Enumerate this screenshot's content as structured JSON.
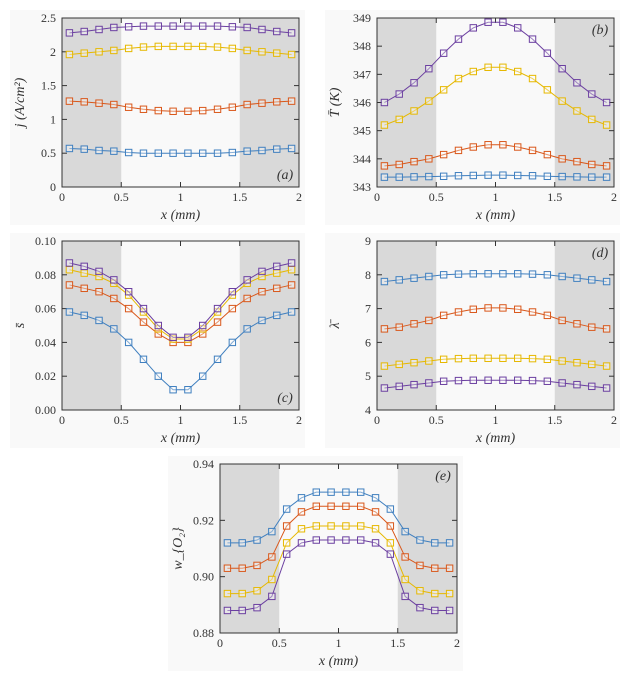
{
  "global": {
    "marker_size": 3.2,
    "shade_left": [
      0,
      0.5
    ],
    "shade_right": [
      1.5,
      2.0
    ],
    "x": [
      0.0625,
      0.1875,
      0.3125,
      0.4375,
      0.5625,
      0.6875,
      0.8125,
      0.9375,
      1.0625,
      1.1875,
      1.3125,
      1.4375,
      1.5625,
      1.6875,
      1.8125,
      1.9375
    ],
    "series_colors": [
      "#3f7fbf",
      "#d9571a",
      "#e6b800",
      "#6b3fa0"
    ],
    "panel_bg": "#f9f9f9",
    "shade_color": "#d9d9d9",
    "axis_color": "#333333"
  },
  "panels": {
    "a": {
      "title_pos": "br",
      "xlim": [
        0,
        2
      ],
      "ylim": [
        0,
        2.5
      ],
      "xticks": [
        0,
        0.5,
        1,
        1.5,
        2
      ],
      "yticks": [
        0,
        0.5,
        1,
        1.5,
        2,
        2.5
      ],
      "xlabel": "x (mm)",
      "ylabel": "j (A/cm²)",
      "series": [
        [
          0.57,
          0.56,
          0.54,
          0.53,
          0.51,
          0.5,
          0.5,
          0.5,
          0.5,
          0.5,
          0.5,
          0.51,
          0.53,
          0.54,
          0.56,
          0.57
        ],
        [
          1.27,
          1.26,
          1.24,
          1.22,
          1.18,
          1.15,
          1.13,
          1.12,
          1.12,
          1.13,
          1.15,
          1.18,
          1.22,
          1.24,
          1.26,
          1.27
        ],
        [
          1.96,
          1.98,
          2.0,
          2.02,
          2.05,
          2.07,
          2.08,
          2.08,
          2.08,
          2.08,
          2.07,
          2.05,
          2.02,
          2.0,
          1.98,
          1.96
        ],
        [
          2.28,
          2.3,
          2.33,
          2.36,
          2.37,
          2.38,
          2.38,
          2.38,
          2.38,
          2.38,
          2.38,
          2.37,
          2.36,
          2.33,
          2.3,
          2.28
        ]
      ]
    },
    "b": {
      "title_pos": "tr",
      "xlim": [
        0,
        2
      ],
      "ylim": [
        343,
        349
      ],
      "xticks": [
        0,
        0.5,
        1,
        1.5,
        2
      ],
      "yticks": [
        343,
        344,
        345,
        346,
        347,
        348,
        349
      ],
      "xlabel": "x (mm)",
      "ylabel": "T̄ (K)",
      "series": [
        [
          343.35,
          343.35,
          343.36,
          343.37,
          343.38,
          343.4,
          343.41,
          343.42,
          343.42,
          343.41,
          343.4,
          343.38,
          343.37,
          343.36,
          343.35,
          343.35
        ],
        [
          343.75,
          343.8,
          343.9,
          344.0,
          344.15,
          344.3,
          344.42,
          344.5,
          344.5,
          344.42,
          344.3,
          344.15,
          344.0,
          343.9,
          343.8,
          343.75
        ],
        [
          345.2,
          345.4,
          345.7,
          346.05,
          346.45,
          346.85,
          347.1,
          347.25,
          347.25,
          347.1,
          346.85,
          346.45,
          346.05,
          345.7,
          345.4,
          345.2
        ],
        [
          346.0,
          346.3,
          346.7,
          347.2,
          347.75,
          348.25,
          348.65,
          348.85,
          348.85,
          348.65,
          348.25,
          347.75,
          347.2,
          346.7,
          346.3,
          346.0
        ]
      ]
    },
    "c": {
      "title_pos": "br",
      "xlim": [
        0,
        2
      ],
      "ylim": [
        0,
        0.1
      ],
      "xticks": [
        0,
        0.5,
        1,
        1.5,
        2
      ],
      "yticks": [
        0,
        0.02,
        0.04,
        0.06,
        0.08,
        0.1
      ],
      "xlabel": "x (mm)",
      "ylabel": "s̄",
      "series": [
        [
          0.058,
          0.056,
          0.053,
          0.048,
          0.04,
          0.03,
          0.02,
          0.012,
          0.012,
          0.02,
          0.03,
          0.04,
          0.048,
          0.053,
          0.056,
          0.058
        ],
        [
          0.074,
          0.072,
          0.07,
          0.066,
          0.06,
          0.052,
          0.045,
          0.04,
          0.04,
          0.045,
          0.052,
          0.06,
          0.066,
          0.07,
          0.072,
          0.074
        ],
        [
          0.083,
          0.081,
          0.079,
          0.075,
          0.068,
          0.058,
          0.048,
          0.042,
          0.042,
          0.048,
          0.058,
          0.068,
          0.075,
          0.079,
          0.081,
          0.083
        ],
        [
          0.087,
          0.085,
          0.082,
          0.077,
          0.07,
          0.06,
          0.05,
          0.043,
          0.043,
          0.05,
          0.06,
          0.07,
          0.077,
          0.082,
          0.085,
          0.087
        ]
      ]
    },
    "d": {
      "title_pos": "tr",
      "xlim": [
        0,
        2
      ],
      "ylim": [
        4,
        9
      ],
      "xticks": [
        0,
        0.5,
        1,
        1.5,
        2
      ],
      "yticks": [
        4,
        5,
        6,
        7,
        8,
        9
      ],
      "xlabel": "x (mm)",
      "ylabel": "λ̄",
      "series": [
        [
          7.8,
          7.85,
          7.9,
          7.95,
          8.0,
          8.02,
          8.03,
          8.03,
          8.03,
          8.03,
          8.02,
          8.0,
          7.95,
          7.9,
          7.85,
          7.8
        ],
        [
          6.4,
          6.45,
          6.55,
          6.65,
          6.8,
          6.9,
          6.98,
          7.02,
          7.02,
          6.98,
          6.9,
          6.8,
          6.65,
          6.55,
          6.45,
          6.4
        ],
        [
          5.3,
          5.35,
          5.4,
          5.45,
          5.5,
          5.52,
          5.53,
          5.53,
          5.53,
          5.53,
          5.52,
          5.5,
          5.45,
          5.4,
          5.35,
          5.3
        ],
        [
          4.65,
          4.7,
          4.75,
          4.8,
          4.85,
          4.87,
          4.88,
          4.88,
          4.88,
          4.88,
          4.87,
          4.85,
          4.8,
          4.75,
          4.7,
          4.65
        ]
      ]
    },
    "e": {
      "title_pos": "tr",
      "xlim": [
        0,
        2
      ],
      "ylim": [
        0.88,
        0.94
      ],
      "xticks": [
        0,
        0.5,
        1,
        1.5,
        2
      ],
      "yticks": [
        0.88,
        0.9,
        0.92,
        0.94
      ],
      "xlabel": "x (mm)",
      "ylabel": "w_{O₂}",
      "series": [
        [
          0.912,
          0.912,
          0.913,
          0.916,
          0.924,
          0.928,
          0.93,
          0.93,
          0.93,
          0.93,
          0.928,
          0.924,
          0.916,
          0.913,
          0.912,
          0.912
        ],
        [
          0.903,
          0.903,
          0.904,
          0.907,
          0.918,
          0.923,
          0.925,
          0.925,
          0.925,
          0.925,
          0.923,
          0.918,
          0.907,
          0.904,
          0.903,
          0.903
        ],
        [
          0.894,
          0.894,
          0.895,
          0.899,
          0.912,
          0.917,
          0.918,
          0.918,
          0.918,
          0.918,
          0.917,
          0.912,
          0.899,
          0.895,
          0.894,
          0.894
        ],
        [
          0.888,
          0.888,
          0.889,
          0.893,
          0.908,
          0.912,
          0.913,
          0.913,
          0.913,
          0.913,
          0.912,
          0.908,
          0.893,
          0.889,
          0.888,
          0.888
        ]
      ]
    }
  }
}
